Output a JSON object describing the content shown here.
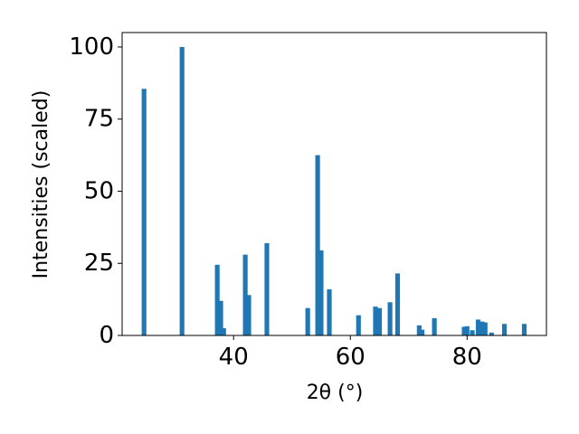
{
  "chart_data": {
    "type": "bar",
    "xlabel": "2θ (°)",
    "ylabel": "Intensities (scaled)",
    "x": [
      24.65,
      31.16,
      37.2,
      37.8,
      38.3,
      42.0,
      42.6,
      45.7,
      52.7,
      54.4,
      55.0,
      56.4,
      61.4,
      64.3,
      65.0,
      66.8,
      68.1,
      71.8,
      72.3,
      74.4,
      79.5,
      80.0,
      80.9,
      81.9,
      82.6,
      83.1,
      84.2,
      86.4,
      89.8
    ],
    "values": [
      85.5,
      100,
      24.5,
      12,
      2.5,
      28,
      14,
      32,
      9.5,
      62.5,
      29.5,
      16,
      7,
      10,
      9.5,
      11.5,
      21.5,
      3.5,
      2,
      6,
      3,
      3.2,
      1.8,
      5.5,
      4.8,
      4.5,
      1,
      4,
      4
    ],
    "width": 0.8,
    "color": "#1f77b4",
    "xlim": [
      20.9,
      93.6
    ],
    "xticks": [
      40,
      60,
      80
    ],
    "ylim": [
      0,
      105
    ],
    "yticks": [
      0,
      25,
      50,
      75,
      100
    ]
  }
}
